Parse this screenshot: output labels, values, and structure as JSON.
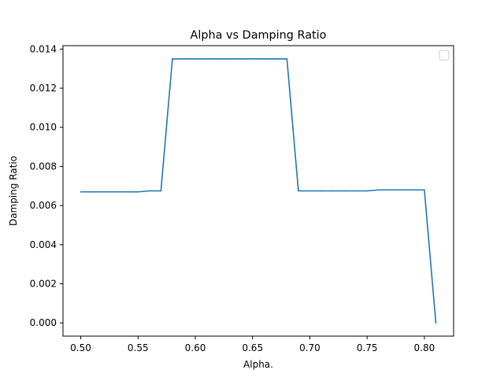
{
  "chart_data": {
    "type": "line",
    "title": "Alpha vs Damping Ratio",
    "xlabel": "Alpha.",
    "ylabel": "Damping Ratio",
    "xlim": [
      0.4845,
      0.8255
    ],
    "ylim": [
      -0.000675,
      0.014175
    ],
    "x_ticks": [
      0.5,
      0.55,
      0.6,
      0.65,
      0.7,
      0.75,
      0.8
    ],
    "x_tick_labels": [
      "0.50",
      "0.55",
      "0.60",
      "0.65",
      "0.70",
      "0.75",
      "0.80"
    ],
    "y_ticks": [
      0.0,
      0.002,
      0.004,
      0.006,
      0.008,
      0.01,
      0.012,
      0.014
    ],
    "y_tick_labels": [
      "0.000",
      "0.002",
      "0.004",
      "0.006",
      "0.008",
      "0.010",
      "0.012",
      "0.014"
    ],
    "grid": false,
    "legend": "top-right",
    "series": [
      {
        "color": "#1f77b4",
        "x": [
          0.5,
          0.51,
          0.52,
          0.53,
          0.54,
          0.55,
          0.56,
          0.57,
          0.58,
          0.59,
          0.6,
          0.61,
          0.62,
          0.63,
          0.64,
          0.65,
          0.66,
          0.67,
          0.68,
          0.69,
          0.7,
          0.71,
          0.72,
          0.73,
          0.74,
          0.75,
          0.76,
          0.77,
          0.78,
          0.79,
          0.8,
          0.81
        ],
        "y": [
          0.0067,
          0.0067,
          0.0067,
          0.0067,
          0.0067,
          0.0067,
          0.00675,
          0.00675,
          0.0135,
          0.0135,
          0.0135,
          0.0135,
          0.0135,
          0.0135,
          0.0135,
          0.0135,
          0.0135,
          0.0135,
          0.0135,
          0.00675,
          0.00675,
          0.00675,
          0.00675,
          0.00675,
          0.00675,
          0.00675,
          0.0068,
          0.0068,
          0.0068,
          0.0068,
          0.0068,
          0.0
        ]
      }
    ]
  }
}
